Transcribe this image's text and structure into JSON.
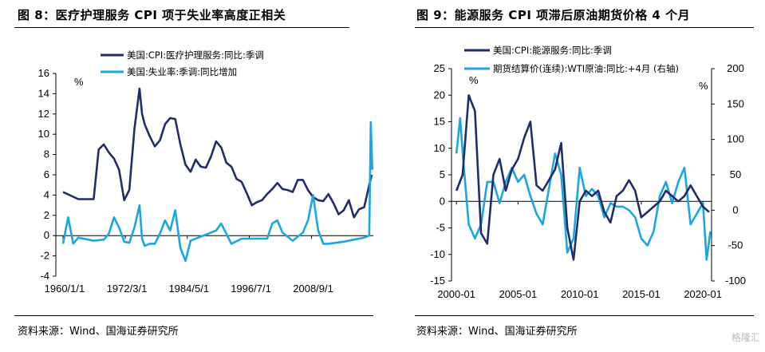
{
  "left": {
    "title": "图 8：医疗护理服务 CPI 项于失业率高度正相关",
    "source": "资料来源：Wind、国海证券研究所",
    "unit": "%",
    "colors": {
      "series1": "#1f2d6b",
      "series2": "#1aa6e0"
    },
    "chart_data": {
      "type": "line",
      "x_ticks": [
        "1960/1/1",
        "1972/3/1",
        "1984/5/1",
        "1996/7/1",
        "2008/9/1"
      ],
      "ylim": [
        -4,
        16
      ],
      "y_ticks": [
        "-4",
        "-2",
        "0",
        "2",
        "4",
        "6",
        "8",
        "10",
        "12",
        "14",
        "16"
      ],
      "series": [
        {
          "name": "美国:CPI:医疗护理服务:同比:季调",
          "x": [
            1960,
            1963,
            1966,
            1967,
            1968,
            1969,
            1970,
            1971,
            1972,
            1973,
            1974,
            1975,
            1975.5,
            1976,
            1977,
            1978,
            1979,
            1980,
            1981,
            1982,
            1983,
            1984,
            1985,
            1986,
            1987,
            1988,
            1989,
            1990,
            1991,
            1992,
            1993,
            1994,
            1995,
            1996,
            1997,
            1998,
            1999,
            2000,
            2001,
            2002,
            2003,
            2004,
            2005,
            2006,
            2007,
            2008,
            2009,
            2010,
            2011,
            2012,
            2013,
            2014,
            2015,
            2016,
            2017,
            2018,
            2019,
            2020,
            2020.5
          ],
          "values": [
            4.3,
            3.6,
            3.6,
            8.5,
            9.0,
            8.2,
            7.6,
            6.5,
            3.5,
            4.5,
            10.5,
            14.5,
            12.0,
            11.0,
            9.8,
            8.8,
            9.4,
            11.0,
            11.6,
            11.5,
            9.0,
            7.0,
            6.3,
            7.5,
            6.8,
            6.7,
            7.8,
            9.3,
            8.7,
            7.2,
            6.8,
            5.6,
            5.3,
            4.2,
            3.0,
            3.3,
            3.5,
            4.1,
            4.6,
            5.2,
            4.6,
            4.5,
            4.3,
            5.5,
            5.5,
            4.5,
            3.8,
            3.5,
            3.4,
            4.1,
            3.2,
            2.1,
            2.5,
            3.5,
            1.8,
            2.6,
            2.8,
            5.0,
            6.0
          ]
        },
        {
          "name": "美国:失业率:季调:同比增加",
          "x": [
            1960,
            1961,
            1962,
            1963,
            1966,
            1968,
            1969,
            1970,
            1971,
            1972,
            1973,
            1974,
            1975,
            1975.5,
            1976,
            1977,
            1978,
            1979,
            1980,
            1981,
            1982,
            1983,
            1984,
            1985,
            1990,
            1991,
            1992,
            1993,
            1995,
            2000,
            2001,
            2002,
            2003,
            2005,
            2007,
            2008,
            2009,
            2010,
            2011,
            2012,
            2015,
            2019,
            2020,
            2020.3,
            2020.6
          ],
          "values": [
            -0.8,
            1.8,
            -0.8,
            -0.2,
            -0.5,
            -0.4,
            0.2,
            1.8,
            0.8,
            -0.6,
            -0.7,
            0.8,
            3.0,
            -0.3,
            -1.0,
            -0.8,
            -0.8,
            0.2,
            1.5,
            0.5,
            2.5,
            -1.2,
            -2.5,
            -0.5,
            0.5,
            1.2,
            0.2,
            -0.8,
            -0.3,
            -0.3,
            1.2,
            1.5,
            0.3,
            -0.5,
            0.3,
            1.5,
            4.0,
            0.5,
            -0.8,
            -0.8,
            -0.6,
            -0.2,
            0.0,
            11.2,
            6.5
          ]
        }
      ]
    }
  },
  "right": {
    "title": "图 9：能源服务 CPI 项滞后原油期货价格 4 个月",
    "source": "资料来源：Wind、国海证券研究所",
    "unit_left": "%",
    "unit_right": "%",
    "colors": {
      "series1": "#1f2d6b",
      "series2": "#1aa6e0"
    },
    "chart_data": {
      "type": "line",
      "x_ticks": [
        "2000-01",
        "2005-01",
        "2010-01",
        "2015-01",
        "2020-01"
      ],
      "ylim": [
        -15,
        25
      ],
      "y_ticks": [
        "-15",
        "-10",
        "-5",
        "0",
        "5",
        "10",
        "15",
        "20",
        "25"
      ],
      "y2lim": [
        -100,
        200
      ],
      "y2_ticks": [
        "-100",
        "-50",
        "0",
        "50",
        "100",
        "150",
        "200"
      ],
      "series": [
        {
          "name": "美国:CPI:能源服务:同比:季调",
          "axis": "left",
          "x": [
            2000,
            2000.5,
            2001,
            2001.5,
            2002,
            2002.5,
            2003,
            2003.5,
            2004,
            2004.5,
            2005,
            2005.5,
            2006,
            2006.5,
            2007,
            2007.5,
            2008,
            2008.5,
            2009,
            2009.5,
            2010,
            2010.5,
            2011,
            2011.5,
            2012,
            2012.5,
            2013,
            2013.5,
            2014,
            2014.5,
            2015,
            2015.5,
            2016,
            2016.5,
            2017,
            2017.5,
            2018,
            2018.5,
            2019,
            2019.5,
            2020,
            2020.5
          ],
          "values": [
            2,
            5,
            20,
            17,
            -6,
            -8,
            5,
            8,
            2,
            6,
            8,
            12,
            15,
            3,
            2,
            4,
            6,
            11,
            -5,
            -11,
            0,
            2,
            1,
            2,
            -2,
            -4,
            1,
            2,
            4,
            2,
            -3,
            -2,
            -1,
            0,
            2,
            1,
            0,
            1,
            3,
            1,
            -1,
            -2
          ]
        },
        {
          "name": "期货结算价(连续):WTI原油:同比:+4月 (右轴)",
          "axis": "right",
          "x": [
            2000,
            2000.3,
            2000.6,
            2001,
            2001.5,
            2002,
            2002.5,
            2003,
            2003.5,
            2004,
            2004.5,
            2005,
            2005.5,
            2006,
            2006.5,
            2007,
            2007.5,
            2008,
            2008.5,
            2009,
            2009.5,
            2010,
            2010.5,
            2011,
            2011.5,
            2012,
            2012.5,
            2013,
            2013.5,
            2014,
            2014.5,
            2015,
            2015.5,
            2016,
            2016.5,
            2017,
            2017.5,
            2018,
            2018.5,
            2019,
            2019.5,
            2020,
            2020.3,
            2020.6
          ],
          "values": [
            80,
            130,
            60,
            -20,
            -40,
            -20,
            40,
            40,
            10,
            40,
            60,
            40,
            50,
            20,
            -5,
            -20,
            30,
            80,
            50,
            -60,
            -40,
            60,
            20,
            30,
            20,
            -10,
            10,
            5,
            5,
            0,
            -10,
            -40,
            -50,
            -30,
            20,
            40,
            10,
            40,
            60,
            -20,
            -5,
            10,
            -70,
            -30
          ]
        }
      ]
    }
  },
  "watermark": "格隆汇"
}
